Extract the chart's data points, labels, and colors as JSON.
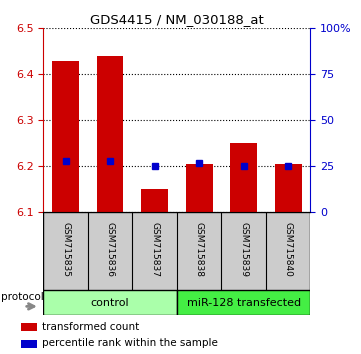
{
  "title": "GDS4415 / NM_030188_at",
  "samples": [
    "GSM715835",
    "GSM715836",
    "GSM715837",
    "GSM715838",
    "GSM715839",
    "GSM715840"
  ],
  "red_values": [
    6.43,
    6.44,
    6.15,
    6.205,
    6.25,
    6.205
  ],
  "blue_values_pct": [
    28,
    28,
    25,
    27,
    25,
    25
  ],
  "y_min": 6.1,
  "y_max": 6.5,
  "y_ticks": [
    6.1,
    6.2,
    6.3,
    6.4,
    6.5
  ],
  "right_y_ticks": [
    0,
    25,
    50,
    75,
    100
  ],
  "bar_width": 0.6,
  "red_color": "#cc0000",
  "blue_color": "#0000cc",
  "n_control": 3,
  "n_treated": 3,
  "control_label": "control",
  "treated_label": "miR-128 transfected",
  "control_bg": "#aaffaa",
  "treated_bg": "#44ee44",
  "sample_bg": "#cccccc",
  "legend_red": "transformed count",
  "legend_blue": "percentile rank within the sample",
  "protocol_label": "protocol"
}
